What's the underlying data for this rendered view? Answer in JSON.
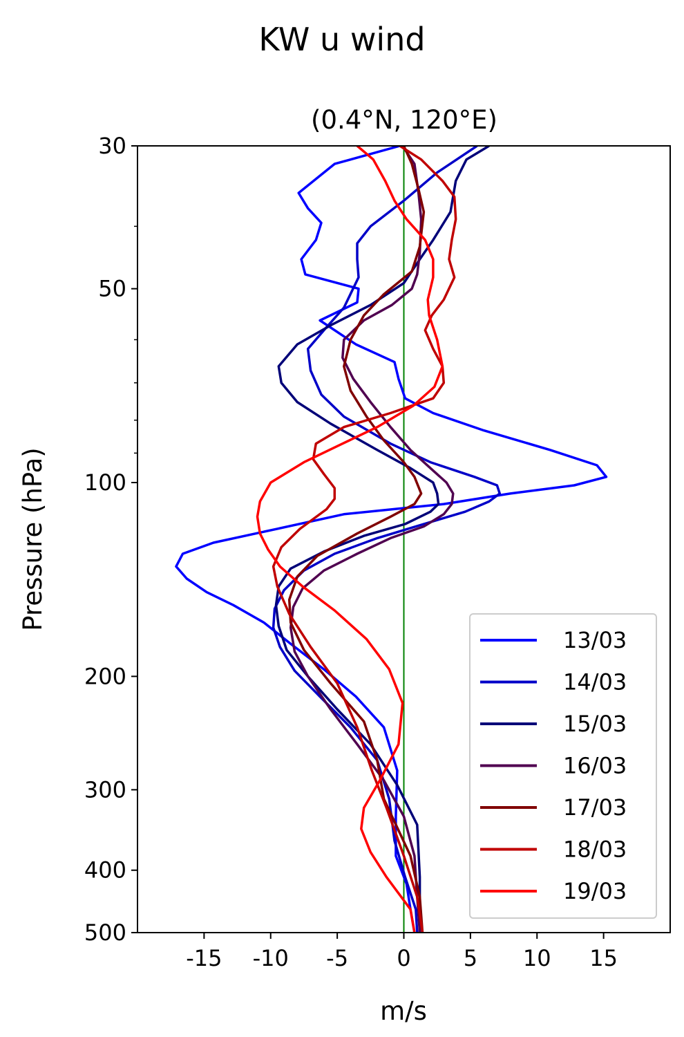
{
  "chart_data": {
    "type": "line",
    "title": "KW u wind",
    "subtitle": "(0.4°N, 120°E)",
    "xlabel": "m/s",
    "ylabel": "Pressure (hPa)",
    "xlim": [
      -20,
      20
    ],
    "ylim": [
      500,
      30
    ],
    "yscale": "log",
    "xticks": [
      -15,
      -10,
      -5,
      0,
      5,
      10,
      15
    ],
    "xtick_labels": [
      "-15",
      "-10",
      "-5",
      "0",
      "5",
      "10",
      "15"
    ],
    "yticks": [
      30,
      50,
      100,
      200,
      300,
      400,
      500
    ],
    "ytick_labels": [
      "30",
      "50",
      "100",
      "200",
      "300",
      "400",
      "500"
    ],
    "yminor": [
      40,
      60,
      70,
      80,
      90
    ],
    "zero_line": {
      "x": 0,
      "color": "#008000"
    },
    "legend_position": "bottom-right",
    "series": [
      {
        "name": "13/03",
        "color": "#0000ff",
        "x": [
          -0.3,
          -5.2,
          -7.9,
          -7.2,
          -6.2,
          -6.6,
          -7.7,
          -7.4,
          -3.4,
          -3.5,
          -6.3,
          -3.6,
          -0.7,
          -0.4,
          0.1,
          2.2,
          6,
          11,
          14.5,
          15.2,
          12.8,
          8,
          3,
          -4.5,
          -9.5,
          -14.3,
          -16.6,
          -17.1,
          -16.3,
          -14.8,
          -12.8,
          -10.5,
          -8.5,
          -6,
          -3.6,
          -1.5,
          -0.5,
          -0.6,
          -0.6,
          0.2,
          0.5,
          0.8
        ],
        "y": [
          30,
          32,
          35.5,
          37.5,
          39.5,
          42,
          45,
          47.5,
          50,
          52.5,
          56,
          61,
          65,
          69,
          74,
          78,
          83,
          89,
          94,
          98,
          101,
          104,
          108,
          112,
          118,
          124,
          129,
          135,
          141,
          148,
          155,
          165,
          178,
          195,
          215,
          240,
          280,
          330,
          380,
          420,
          460,
          500
        ]
      },
      {
        "name": "14/03",
        "color": "#0000c8",
        "x": [
          5.5,
          2.5,
          0,
          -2.5,
          -3.5,
          -3.5,
          -3.4,
          -4.5,
          -6,
          -7.2,
          -7,
          -6.2,
          -4.5,
          -1,
          2,
          5.3,
          7,
          7.2,
          6.4,
          4.6,
          1.5,
          -2,
          -5.2,
          -7.5,
          -9,
          -9.7,
          -9.8,
          -9.3,
          -8.2,
          -6.3,
          -4,
          -2,
          -1.1,
          -0.7,
          0.1,
          0.9,
          1.0
        ],
        "y": [
          30,
          33,
          36.5,
          40,
          42.5,
          45,
          48,
          53.5,
          58,
          62,
          67,
          73,
          79,
          87,
          93,
          98,
          101,
          104,
          107,
          111,
          116,
          122,
          129,
          137,
          147,
          157,
          168,
          180,
          196,
          215,
          240,
          270,
          310,
          360,
          410,
          460,
          500
        ]
      },
      {
        "name": "15/03",
        "color": "#000078",
        "x": [
          6.4,
          4.7,
          3.9,
          3.5,
          2.2,
          1.2,
          0,
          -2.5,
          -5.5,
          -8,
          -9.4,
          -9.2,
          -8,
          -5.5,
          -2,
          0.5,
          2.2,
          2.5,
          2.6,
          2.0,
          0.1,
          -3,
          -6,
          -8.5,
          -9.4,
          -9.6,
          -9.4,
          -8.8,
          -7.2,
          -5,
          -2.5,
          -0.5,
          1,
          1.2,
          1.2
        ],
        "y": [
          30,
          31.5,
          34,
          38,
          42,
          45,
          49,
          53,
          57,
          61,
          66,
          70,
          75,
          81,
          89,
          95,
          100,
          104,
          108,
          111,
          116,
          121,
          128,
          136,
          145,
          155,
          167,
          182,
          200,
          225,
          255,
          295,
          340,
          410,
          500
        ]
      },
      {
        "name": "16/03",
        "color": "#500050",
        "x": [
          -0.1,
          0.8,
          1.1,
          1.3,
          1.2,
          1.0,
          0.6,
          -0.9,
          -3,
          -4.5,
          -4.6,
          -3.8,
          -2.5,
          -1,
          0.5,
          2,
          3.2,
          3.7,
          3.6,
          3.0,
          1.5,
          -1,
          -3.5,
          -6,
          -7.6,
          -8.3,
          -8.5,
          -8.2,
          -7.2,
          -5.5,
          -3.5,
          -1.5,
          0,
          0.8,
          1.0,
          1.2
        ],
        "y": [
          30,
          32,
          35.5,
          39,
          44,
          47.5,
          50,
          53,
          56,
          60,
          64,
          69,
          75,
          82,
          89,
          95,
          100,
          104,
          108,
          112,
          117,
          122,
          129,
          137,
          146,
          156,
          168,
          183,
          200,
          225,
          255,
          290,
          330,
          380,
          440,
          500
        ]
      },
      {
        "name": "17/03",
        "color": "#800000",
        "x": [
          0,
          0.6,
          1.1,
          1.5,
          1.2,
          0.6,
          -1.5,
          -3,
          -4,
          -4.5,
          -4.0,
          -2.8,
          -1.5,
          0,
          0.8,
          1.3,
          0.8,
          -1,
          -3.5,
          -6.5,
          -8,
          -8.6,
          -8.5,
          -7.5,
          -5.5,
          -3,
          -2,
          -1.5,
          0.5,
          1.2,
          1.4
        ],
        "y": [
          30,
          32,
          35,
          38,
          43,
          47,
          51,
          55,
          60,
          66,
          72,
          79,
          86,
          93,
          98,
          104,
          108,
          113,
          120,
          130,
          140,
          152,
          165,
          182,
          205,
          235,
          270,
          310,
          380,
          440,
          500
        ]
      },
      {
        "name": "18/03",
        "color": "#c00000",
        "x": [
          -0.3,
          1.3,
          2.9,
          3.8,
          3.9,
          3.6,
          3.4,
          3.8,
          3.0,
          2.1,
          1.6,
          2.2,
          2.9,
          3.0,
          2.2,
          -1.0,
          -4.5,
          -6.6,
          -6.8,
          -6.0,
          -5.2,
          -5.2,
          -5.8,
          -7.8,
          -9.2,
          -9.8,
          -9.5,
          -8.6,
          -7,
          -5,
          -3.5,
          -2.4,
          -1.3,
          0,
          1.0,
          1.4
        ],
        "y": [
          30,
          31.5,
          34,
          36,
          39,
          42,
          45,
          48,
          52,
          55,
          58,
          62,
          66,
          70,
          74,
          78,
          82,
          87,
          92,
          97,
          102,
          106,
          110,
          118,
          126,
          135,
          145,
          160,
          180,
          205,
          240,
          280,
          320,
          380,
          440,
          500
        ]
      },
      {
        "name": "19/03",
        "color": "#ff0000",
        "x": [
          -3.5,
          -2.3,
          -1.4,
          -0.7,
          0.2,
          1.6,
          2.2,
          2.2,
          1.8,
          1.9,
          2.5,
          2.9,
          2.3,
          0.7,
          -2.0,
          -4.6,
          -7.5,
          -10.0,
          -10.8,
          -11,
          -10.8,
          -10.2,
          -9.3,
          -7.6,
          -5.2,
          -2.8,
          -1.1,
          -0.1,
          -0.4,
          -1.8,
          -3,
          -3.2,
          -2.5,
          -1.3,
          0.5,
          0.8
        ],
        "y": [
          30,
          31.5,
          34,
          36.5,
          39,
          42,
          45,
          48,
          52,
          55,
          60,
          66,
          71,
          76,
          82,
          87,
          93,
          100,
          107,
          113,
          120,
          127,
          135,
          145,
          158,
          175,
          195,
          220,
          255,
          290,
          320,
          345,
          375,
          410,
          460,
          500
        ]
      }
    ]
  }
}
